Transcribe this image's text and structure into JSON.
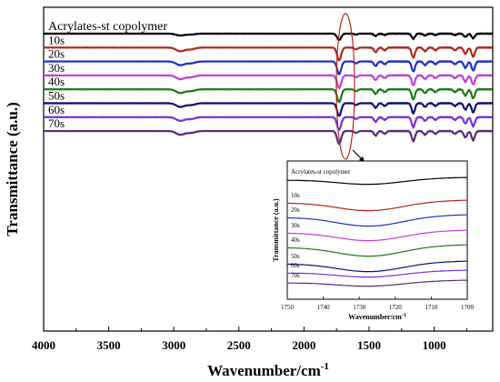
{
  "chart_data": {
    "type": "line",
    "xlabel": "Wavenumber/cm",
    "xlabel_sup": "-1",
    "ylabel": "Transmittance  (a.u.)",
    "x_reversed": true,
    "xlim": [
      4000,
      550
    ],
    "xticks": [
      "4000",
      "3500",
      "3000",
      "2500",
      "2000",
      "1500",
      "1000"
    ],
    "xtick_values": [
      4000,
      3500,
      3000,
      2500,
      2000,
      1500,
      1000
    ],
    "series": [
      {
        "name": "Acrylates-st copolymer",
        "color": "#000000",
        "offset": 0,
        "peak_depth": 0.45
      },
      {
        "name": "10s",
        "color": "#b0281e",
        "offset": 1,
        "peak_depth": 1.0
      },
      {
        "name": "20s",
        "color": "#1f2fc8",
        "offset": 2,
        "peak_depth": 1.0
      },
      {
        "name": "30s",
        "color": "#c040d8",
        "offset": 3,
        "peak_depth": 1.0
      },
      {
        "name": "40s",
        "color": "#1a7a1a",
        "offset": 4,
        "peak_depth": 1.0
      },
      {
        "name": "50s",
        "color": "#10107a",
        "offset": 5,
        "peak_depth": 1.0
      },
      {
        "name": "60s",
        "color": "#7a30e0",
        "offset": 6,
        "peak_depth": 1.0
      },
      {
        "name": "70s",
        "color": "#5a2a7a",
        "offset": 7,
        "peak_depth": 1.0
      }
    ],
    "absorption_bands": [
      {
        "x": 2950,
        "depth": 4
      },
      {
        "x": 2870,
        "depth": 2
      },
      {
        "x": 1730,
        "depth": 14
      },
      {
        "x": 1600,
        "depth": 2
      },
      {
        "x": 1450,
        "depth": 5
      },
      {
        "x": 1380,
        "depth": 3
      },
      {
        "x": 1160,
        "depth": 11
      },
      {
        "x": 1070,
        "depth": 4
      },
      {
        "x": 990,
        "depth": 3
      },
      {
        "x": 840,
        "depth": 3
      },
      {
        "x": 760,
        "depth": 7
      },
      {
        "x": 700,
        "depth": 10
      }
    ],
    "inset": {
      "xlim": [
        1750,
        1700
      ],
      "xticks": [
        "1750",
        "1740",
        "1730",
        "1720",
        "1710",
        "1700"
      ],
      "xtick_values": [
        1750,
        1740,
        1730,
        1720,
        1710,
        1700
      ],
      "xlabel": "Wavenumber/cm",
      "xlabel_sup": "-1",
      "ylabel": "Transmittance  (a.u.)",
      "labels": [
        "Acrylates-st copolymer",
        "10s",
        "20s",
        "30s",
        "40s",
        "50s",
        "60s",
        "70s"
      ]
    }
  }
}
